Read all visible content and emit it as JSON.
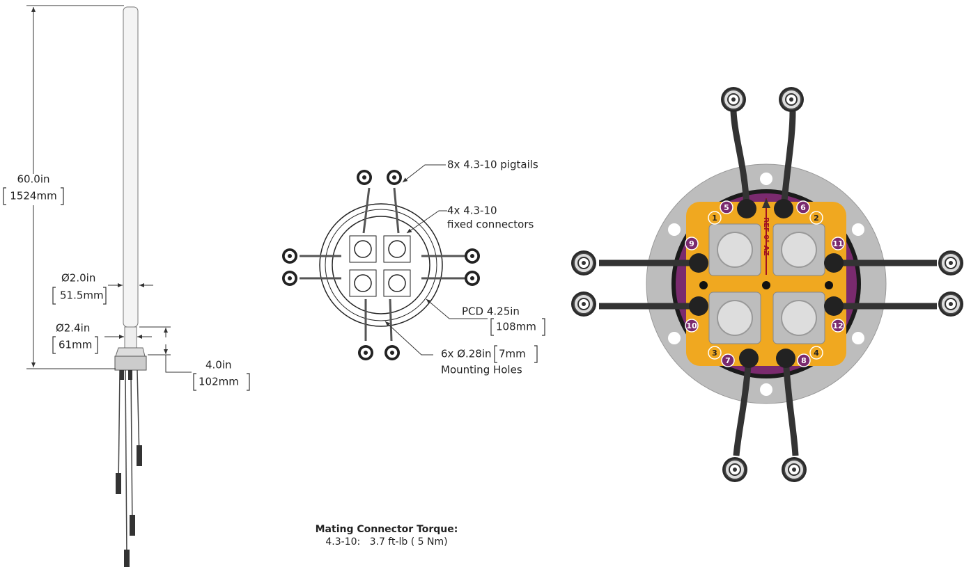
{
  "side_view": {
    "height": "60.0in",
    "height_mm": "1524mm",
    "radome_dia": "Ø2.0in",
    "radome_dia_mm": "51.5mm",
    "base_dia": "Ø2.4in",
    "base_dia_mm": "61mm",
    "base_height": "4.0in",
    "base_height_mm": "102mm"
  },
  "top_view": {
    "pigtails": "8x 4.3-10 pigtails",
    "fixed_1": "4x 4.3-10",
    "fixed_2": "fixed connectors",
    "pcd": "PCD 4.25in",
    "pcd_mm": "108mm",
    "holes": "6x Ø.28in",
    "holes_mm": "7mm",
    "holes_2": "Mounting Holes"
  },
  "torque": {
    "title": "Mating Connector Torque:",
    "line": "4.3-10:   3.7 ft-lb ( 5 Nm)"
  },
  "port_map": {
    "reference": "REF 0° AZ",
    "ports": [
      "1",
      "2",
      "3",
      "4",
      "5",
      "6",
      "7",
      "8",
      "9",
      "10",
      "11",
      "12"
    ]
  }
}
